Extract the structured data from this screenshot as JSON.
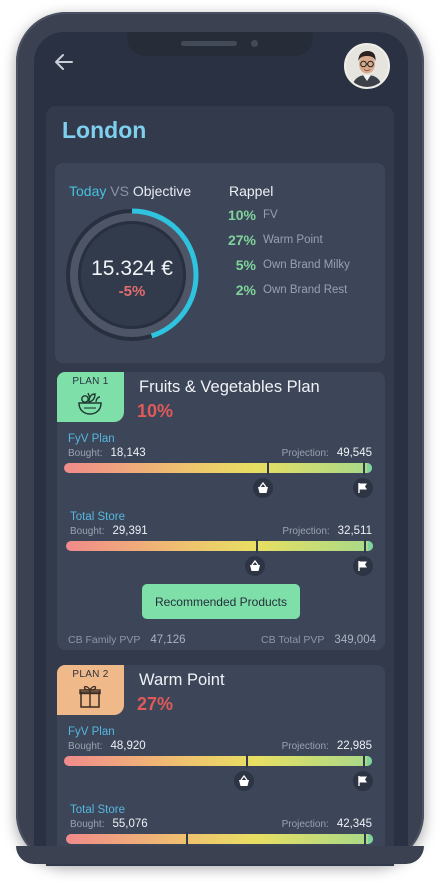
{
  "header": {
    "city": "London"
  },
  "summary": {
    "today_label": "Today",
    "vs_label": "VS",
    "objective_label": "Objective",
    "value": "15.324 €",
    "delta": "-5%",
    "progress_fraction": 0.45,
    "rappel_title": "Rappel",
    "rappel": [
      {
        "pct": "10%",
        "label": "FV"
      },
      {
        "pct": "27%",
        "label": "Warm Point"
      },
      {
        "pct": "5%",
        "label": "Own Brand Milky"
      },
      {
        "pct": "2%",
        "label": "Own Brand Rest"
      }
    ]
  },
  "plans": [
    {
      "tag": "PLAN 1",
      "name": "Fruits & Vegetables Plan",
      "pct": "10%",
      "metrics": [
        {
          "title": "FyV Plan",
          "bought_label": "Bought:",
          "bought": "18,143",
          "projection_label": "Projection:",
          "projection": "49,545",
          "marker_fraction": 0.66
        },
        {
          "title": "Total Store",
          "bought_label": "Bought:",
          "bought": "29,391",
          "projection_label": "Projection:",
          "projection": "32,511",
          "marker_fraction": 0.62
        }
      ],
      "button": "Recommended Products",
      "footer": {
        "family_label": "CB Family PVP",
        "family_value": "47,126",
        "total_label": "CB Total PVP",
        "total_value": "349,004"
      }
    },
    {
      "tag": "PLAN 2",
      "name": "Warm Point",
      "pct": "27%",
      "metrics": [
        {
          "title": "FyV Plan",
          "bought_label": "Bought:",
          "bought": "48,920",
          "projection_label": "Projection:",
          "projection": "22,985",
          "marker_fraction": 0.59
        },
        {
          "title": "Total Store",
          "bought_label": "Bought:",
          "bought": "55,076",
          "projection_label": "Projection:",
          "projection": "42,345",
          "marker_fraction": 0.39
        }
      ]
    }
  ],
  "colors": {
    "accent_blue": "#45c1df",
    "positive_green": "#7fd49b",
    "negative_red": "#e05a5a",
    "plan1_tag": "#7fdfa9",
    "plan2_tag": "#f0b98a"
  }
}
